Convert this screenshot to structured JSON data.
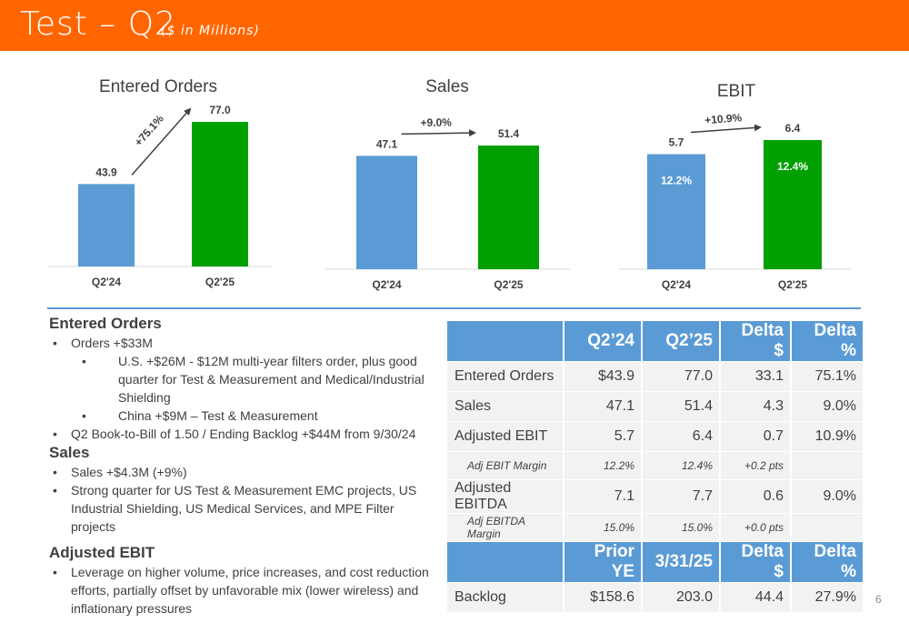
{
  "header": {
    "title": "Test – Q2",
    "subtitle": "($ in Millions)"
  },
  "colors": {
    "accent": "#ff6600",
    "q2_24": "#5b9bd5",
    "q2_25": "#00a000",
    "table_header": "#5b9bd5"
  },
  "chart_data": [
    {
      "type": "bar",
      "title": "Entered Orders",
      "categories": [
        "Q2'24",
        "Q2'25"
      ],
      "values": [
        43.9,
        77.0
      ],
      "value_labels": [
        "43.9",
        "77.0"
      ],
      "growth_label": "+75.1%"
    },
    {
      "type": "bar",
      "title": "Sales",
      "categories": [
        "Q2'24",
        "Q2'25"
      ],
      "values": [
        47.1,
        51.4
      ],
      "value_labels": [
        "47.1",
        "51.4"
      ],
      "growth_label": "+9.0%"
    },
    {
      "type": "bar",
      "title": "EBIT",
      "categories": [
        "Q2'24",
        "Q2'25"
      ],
      "values": [
        5.7,
        6.4
      ],
      "value_labels": [
        "5.7",
        "6.4"
      ],
      "growth_label": "+10.9%",
      "inner_labels": [
        "12.2%",
        "12.4%"
      ]
    }
  ],
  "notes": {
    "orders_heading": "Entered Orders",
    "orders_b1": "Orders +$33M",
    "orders_b1a": "U.S. +$26M - $12M multi-year filters order, plus good quarter for Test & Measurement and Medical/Industrial Shielding",
    "orders_b1b": "China +$9M – Test & Measurement",
    "orders_b2": "Q2 Book-to-Bill of 1.50 / Ending Backlog +$44M from 9/30/24",
    "sales_heading": "Sales",
    "sales_b1": "Sales +$4.3M (+9%)",
    "sales_b2": "Strong quarter for US Test & Measurement EMC projects, US Industrial Shielding, US Medical Services, and MPE Filter projects",
    "ebit_heading": "Adjusted EBIT",
    "ebit_b1": "Leverage on higher volume, price increases, and cost reduction efforts, partially offset by unfavorable mix (lower wireless) and inflationary pressures"
  },
  "table": {
    "header1": [
      "",
      "Q2’24",
      "Q2’25",
      "Delta $",
      "Delta %"
    ],
    "rows": [
      {
        "label": "Entered Orders",
        "cells": [
          "$43.9",
          "77.0",
          "33.1",
          "75.1%"
        ]
      },
      {
        "label": "Sales",
        "cells": [
          "47.1",
          "51.4",
          "4.3",
          "9.0%"
        ]
      },
      {
        "label": "Adjusted EBIT",
        "cells": [
          "5.7",
          "6.4",
          "0.7",
          "10.9%"
        ]
      },
      {
        "label": "Adj EBIT Margin",
        "cells": [
          "12.2%",
          "12.4%",
          "+0.2 pts",
          ""
        ]
      },
      {
        "label": "Adjusted EBITDA",
        "cells": [
          "7.1",
          "7.7",
          "0.6",
          "9.0%"
        ]
      },
      {
        "label": "Adj EBITDA Margin",
        "cells": [
          "15.0%",
          "15.0%",
          "+0.0 pts",
          ""
        ]
      }
    ],
    "header2": [
      "",
      "Prior YE",
      "3/31/25",
      "Delta $",
      "Delta %"
    ],
    "backlog": {
      "label": "Backlog",
      "cells": [
        "$158.6",
        "203.0",
        "44.4",
        "27.9%"
      ]
    }
  },
  "page_number": "6"
}
